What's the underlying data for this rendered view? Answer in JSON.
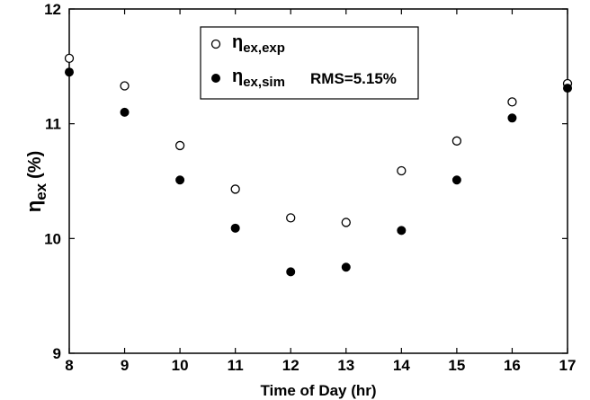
{
  "chart_data": {
    "type": "scatter",
    "xlabel": "Time of Day (hr)",
    "ylabel": {
      "symbol": "η",
      "subscript": "ex",
      "suffix": "(%)"
    },
    "xlim": [
      8,
      17
    ],
    "ylim": [
      9,
      12
    ],
    "xticks": [
      "8",
      "9",
      "10",
      "11",
      "12",
      "13",
      "14",
      "15",
      "16",
      "17"
    ],
    "yticks": [
      "9",
      "10",
      "11",
      "12"
    ],
    "grid": false,
    "legend_position": "top-center",
    "series": [
      {
        "name": "η_ex,exp",
        "legend_symbol": "η",
        "legend_subscript": "ex,exp",
        "marker": "open-circle",
        "x": [
          8,
          9,
          10,
          11,
          12,
          13,
          14,
          15,
          16,
          17
        ],
        "y": [
          11.57,
          11.33,
          10.81,
          10.43,
          10.18,
          10.14,
          10.59,
          10.85,
          11.19,
          11.35
        ]
      },
      {
        "name": "η_ex,sim",
        "legend_symbol": "η",
        "legend_subscript": "ex,sim",
        "marker": "filled-circle",
        "x": [
          8,
          9,
          10,
          11,
          12,
          13,
          14,
          15,
          16,
          17
        ],
        "y": [
          11.45,
          11.1,
          10.51,
          10.09,
          9.71,
          9.75,
          10.07,
          10.51,
          11.05,
          11.31
        ]
      }
    ],
    "annotation": "RMS=5.15%"
  }
}
